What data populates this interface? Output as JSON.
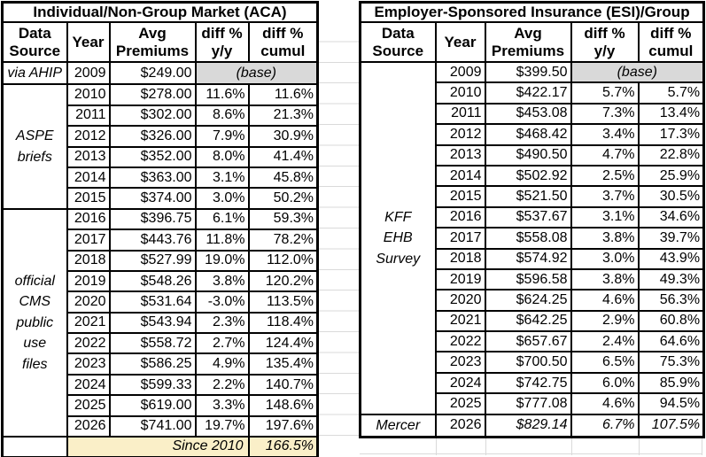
{
  "colors": {
    "border": "#000000",
    "base_cell_fill": "#D9D9D9",
    "since_row_fill": "#FAEFC8",
    "sheet_gridline": "#DADADA",
    "background": "#FFFFFF"
  },
  "left_table": {
    "title": "Individual/Non-Group Market (ACA)",
    "headers": [
      "Data\nSource",
      "Year",
      "Avg\nPremiums",
      "diff %\ny/y",
      "diff %\ncumul"
    ],
    "base_label": "(base)",
    "rows": [
      {
        "source": {
          "text": "via AHIP",
          "rowspan": 1
        },
        "year": "2009",
        "premium": "$249.00",
        "base": true
      },
      {
        "source": {
          "text": "ASPE\nbriefs",
          "rowspan": 6
        },
        "year": "2010",
        "premium": "$278.00",
        "yoy": "11.6%",
        "cumul": "11.6%"
      },
      {
        "year": "2011",
        "premium": "$302.00",
        "yoy": "8.6%",
        "cumul": "21.3%"
      },
      {
        "year": "2012",
        "premium": "$326.00",
        "yoy": "7.9%",
        "cumul": "30.9%"
      },
      {
        "year": "2013",
        "premium": "$352.00",
        "yoy": "8.0%",
        "cumul": "41.4%"
      },
      {
        "year": "2014",
        "premium": "$363.00",
        "yoy": "3.1%",
        "cumul": "45.8%"
      },
      {
        "year": "2015",
        "premium": "$374.00",
        "yoy": "3.0%",
        "cumul": "50.2%"
      },
      {
        "source": {
          "text": "official\nCMS\npublic\nuse\nfiles",
          "rowspan": 11
        },
        "year": "2016",
        "premium": "$396.75",
        "yoy": "6.1%",
        "cumul": "59.3%"
      },
      {
        "year": "2017",
        "premium": "$443.76",
        "yoy": "11.8%",
        "cumul": "78.2%"
      },
      {
        "year": "2018",
        "premium": "$527.99",
        "yoy": "19.0%",
        "cumul": "112.0%"
      },
      {
        "year": "2019",
        "premium": "$548.26",
        "yoy": "3.8%",
        "cumul": "120.2%"
      },
      {
        "year": "2020",
        "premium": "$531.64",
        "yoy": "-3.0%",
        "cumul": "113.5%"
      },
      {
        "year": "2021",
        "premium": "$543.94",
        "yoy": "2.3%",
        "cumul": "118.4%"
      },
      {
        "year": "2022",
        "premium": "$558.72",
        "yoy": "2.7%",
        "cumul": "124.4%"
      },
      {
        "year": "2023",
        "premium": "$586.25",
        "yoy": "4.9%",
        "cumul": "135.4%"
      },
      {
        "year": "2024",
        "premium": "$599.33",
        "yoy": "2.2%",
        "cumul": "140.7%"
      },
      {
        "year": "2025",
        "premium": "$619.00",
        "yoy": "3.3%",
        "cumul": "148.6%"
      },
      {
        "year": "2026",
        "premium": "$741.00",
        "yoy": "19.7%",
        "cumul": "197.6%"
      }
    ],
    "footer": {
      "label": "Since 2010",
      "value": "166.5%"
    }
  },
  "right_table": {
    "title": "Employer-Sponsored Insurance (ESI)/Group",
    "headers": [
      "Data\nSource",
      "Year",
      "Avg\nPremiums",
      "diff %\ny/y",
      "diff %\ncumul"
    ],
    "base_label": "(base)",
    "rows": [
      {
        "source": {
          "text": "KFF\nEHB\nSurvey",
          "rowspan": 17
        },
        "year": "2009",
        "premium": "$399.50",
        "base": true
      },
      {
        "year": "2010",
        "premium": "$422.17",
        "yoy": "5.7%",
        "cumul": "5.7%"
      },
      {
        "year": "2011",
        "premium": "$453.08",
        "yoy": "7.3%",
        "cumul": "13.4%"
      },
      {
        "year": "2012",
        "premium": "$468.42",
        "yoy": "3.4%",
        "cumul": "17.3%"
      },
      {
        "year": "2013",
        "premium": "$490.50",
        "yoy": "4.7%",
        "cumul": "22.8%"
      },
      {
        "year": "2014",
        "premium": "$502.92",
        "yoy": "2.5%",
        "cumul": "25.9%"
      },
      {
        "year": "2015",
        "premium": "$521.50",
        "yoy": "3.7%",
        "cumul": "30.5%"
      },
      {
        "year": "2016",
        "premium": "$537.67",
        "yoy": "3.1%",
        "cumul": "34.6%"
      },
      {
        "year": "2017",
        "premium": "$558.08",
        "yoy": "3.8%",
        "cumul": "39.7%"
      },
      {
        "year": "2018",
        "premium": "$574.92",
        "yoy": "3.0%",
        "cumul": "43.9%"
      },
      {
        "year": "2019",
        "premium": "$596.58",
        "yoy": "3.8%",
        "cumul": "49.3%"
      },
      {
        "year": "2020",
        "premium": "$624.25",
        "yoy": "4.6%",
        "cumul": "56.3%"
      },
      {
        "year": "2021",
        "premium": "$642.25",
        "yoy": "2.9%",
        "cumul": "60.8%"
      },
      {
        "year": "2022",
        "premium": "$657.67",
        "yoy": "2.4%",
        "cumul": "64.6%"
      },
      {
        "year": "2023",
        "premium": "$700.50",
        "yoy": "6.5%",
        "cumul": "75.3%"
      },
      {
        "year": "2024",
        "premium": "$742.75",
        "yoy": "6.0%",
        "cumul": "85.9%"
      },
      {
        "year": "2025",
        "premium": "$777.08",
        "yoy": "4.6%",
        "cumul": "94.5%"
      },
      {
        "source": {
          "text": "Mercer",
          "rowspan": 1
        },
        "year": "2026",
        "premium": "$829.14",
        "yoy": "6.7%",
        "cumul": "107.5%",
        "italic": true
      }
    ]
  }
}
